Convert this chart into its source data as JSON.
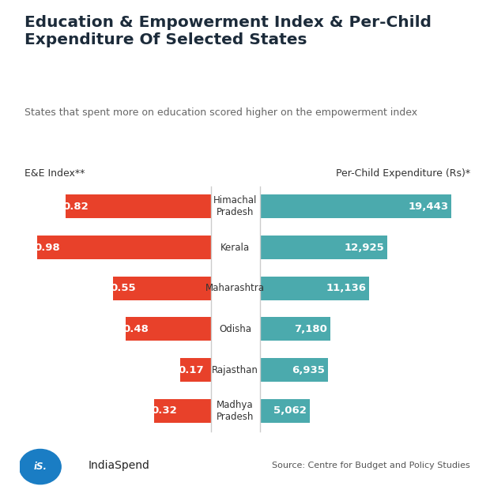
{
  "title": "Education & Empowerment Index & Per-Child\nExpenditure Of Selected States",
  "subtitle": "States that spent more on education scored higher on the empowerment index",
  "left_axis_label": "E&E Index**",
  "right_axis_label": "Per-Child Expenditure (Rs)*",
  "states": [
    "Himachal\nPradesh",
    "Kerala",
    "Maharashtra",
    "Odisha",
    "Rajasthan",
    "Madhya\nPradesh"
  ],
  "ee_index": [
    0.82,
    0.98,
    0.55,
    0.48,
    0.17,
    0.32
  ],
  "per_child": [
    19443,
    12925,
    11136,
    7180,
    6935,
    5062
  ],
  "per_child_labels": [
    "19,443",
    "12,925",
    "11,136",
    "7,180",
    "6,935",
    "5,062"
  ],
  "ee_labels": [
    "0.82",
    "0.98",
    "0.55",
    "0.48",
    "0.17",
    "0.32"
  ],
  "red_color": "#E8412A",
  "teal_color": "#4BAAAD",
  "bg_color": "#FFFFFF",
  "title_color": "#1C2B3A",
  "subtitle_color": "#666666",
  "bar_height": 0.58,
  "source_text": "Source: Centre for Budget and Policy Studies",
  "brand_text": "IndiaSpend",
  "logo_color": "#1A7DC4",
  "footer_text_color": "#444444"
}
